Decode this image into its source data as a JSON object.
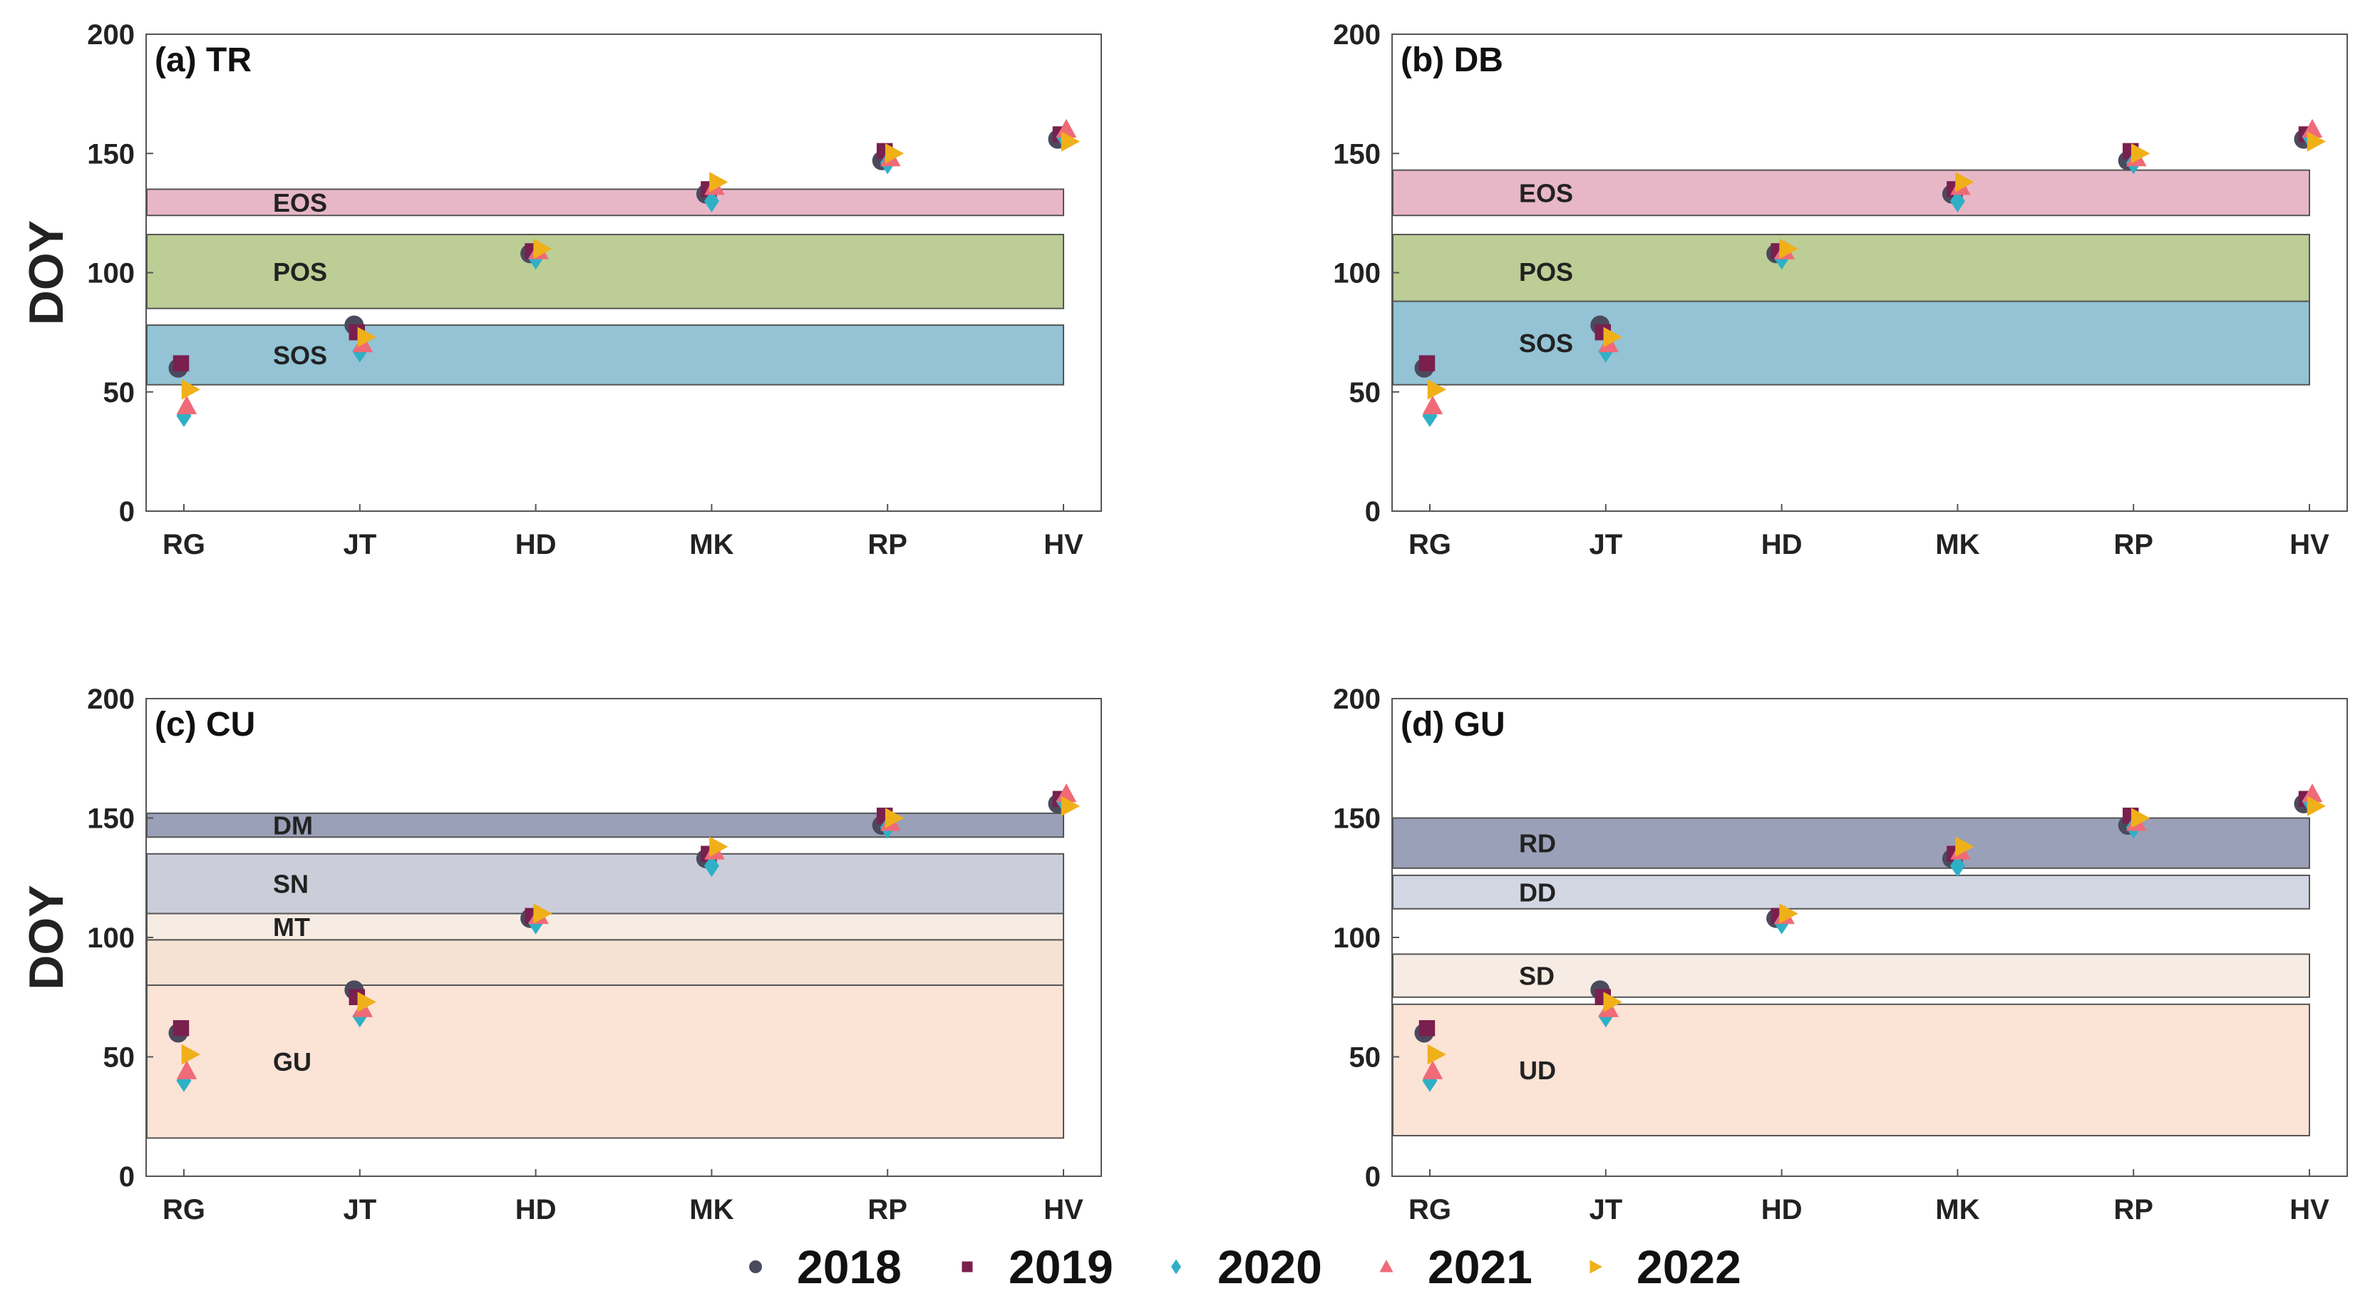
{
  "chart_data": [
    {
      "type": "scatter",
      "title": "(a) TR",
      "ylabel": "DOY",
      "ylim": [
        0,
        200
      ],
      "yticks": [
        "0",
        "50",
        "100",
        "150",
        "200"
      ],
      "categories": [
        "RG",
        "JT",
        "HD",
        "MK",
        "RP",
        "HV"
      ],
      "bands": [
        {
          "label": "EOS",
          "y0": 124,
          "y1": 135,
          "color": "#e8b7c7"
        },
        {
          "label": "POS",
          "y0": 85,
          "y1": 116,
          "color": "#bccd95"
        },
        {
          "label": "SOS",
          "y0": 53,
          "y1": 78,
          "color": "#93c3d4"
        }
      ],
      "series": [
        {
          "name": "2018",
          "values": [
            60,
            78,
            108,
            133,
            147,
            156
          ]
        },
        {
          "name": "2019",
          "values": [
            62,
            75,
            109,
            135,
            151,
            158
          ]
        },
        {
          "name": "2020",
          "values": [
            40,
            67,
            106,
            130,
            146,
            157
          ]
        },
        {
          "name": "2021",
          "values": [
            44,
            70,
            109,
            136,
            148,
            160
          ]
        },
        {
          "name": "2022",
          "values": [
            51,
            73,
            110,
            138,
            150,
            155
          ]
        }
      ]
    },
    {
      "type": "scatter",
      "title": "(b) DB",
      "ylabel": "",
      "ylim": [
        0,
        200
      ],
      "yticks": [
        "0",
        "50",
        "100",
        "150",
        "200"
      ],
      "categories": [
        "RG",
        "JT",
        "HD",
        "MK",
        "RP",
        "HV"
      ],
      "bands": [
        {
          "label": "EOS",
          "y0": 124,
          "y1": 143,
          "color": "#e8b7c7"
        },
        {
          "label": "POS",
          "y0": 85,
          "y1": 116,
          "color": "#bccd95"
        },
        {
          "label": "SOS",
          "y0": 53,
          "y1": 88,
          "color": "#93c3d4"
        }
      ],
      "series": [
        {
          "name": "2018",
          "values": [
            60,
            78,
            108,
            133,
            147,
            156
          ]
        },
        {
          "name": "2019",
          "values": [
            62,
            75,
            109,
            135,
            151,
            158
          ]
        },
        {
          "name": "2020",
          "values": [
            40,
            67,
            106,
            130,
            146,
            157
          ]
        },
        {
          "name": "2021",
          "values": [
            44,
            70,
            109,
            136,
            148,
            160
          ]
        },
        {
          "name": "2022",
          "values": [
            51,
            73,
            110,
            138,
            150,
            155
          ]
        }
      ]
    },
    {
      "type": "scatter",
      "title": "(c) CU",
      "ylabel": "DOY",
      "ylim": [
        0,
        200
      ],
      "yticks": [
        "0",
        "50",
        "100",
        "150",
        "200"
      ],
      "categories": [
        "RG",
        "JT",
        "HD",
        "MK",
        "RP",
        "HV"
      ],
      "bands": [
        {
          "label": "GU",
          "y0": 16,
          "y1": 80,
          "color": "#fbe3d6"
        },
        {
          "label": "",
          "y0": 80,
          "y1": 99,
          "color": "#f6e2d2"
        },
        {
          "label": "MT",
          "y0": 99,
          "y1": 110,
          "color": "#f7ece3"
        },
        {
          "label": "SN",
          "y0": 110,
          "y1": 135,
          "color": "#cbcdd9"
        },
        {
          "label": "DM",
          "y0": 142,
          "y1": 152,
          "color": "#9aa0b7"
        }
      ],
      "series": [
        {
          "name": "2018",
          "values": [
            60,
            78,
            108,
            133,
            147,
            156
          ]
        },
        {
          "name": "2019",
          "values": [
            62,
            75,
            109,
            135,
            151,
            158
          ]
        },
        {
          "name": "2020",
          "values": [
            40,
            67,
            106,
            130,
            146,
            157
          ]
        },
        {
          "name": "2021",
          "values": [
            44,
            70,
            109,
            136,
            148,
            160
          ]
        },
        {
          "name": "2022",
          "values": [
            51,
            73,
            110,
            138,
            150,
            155
          ]
        }
      ]
    },
    {
      "type": "scatter",
      "title": "(d) GU",
      "ylabel": "",
      "ylim": [
        0,
        200
      ],
      "yticks": [
        "0",
        "50",
        "100",
        "150",
        "200"
      ],
      "categories": [
        "RG",
        "JT",
        "HD",
        "MK",
        "RP",
        "HV"
      ],
      "bands": [
        {
          "label": "UD",
          "y0": 17,
          "y1": 72,
          "color": "#fbe3d6"
        },
        {
          "label": "SD",
          "y0": 75,
          "y1": 93,
          "color": "#f7ece3"
        },
        {
          "label": "DD",
          "y0": 112,
          "y1": 126,
          "color": "#d3d6e3"
        },
        {
          "label": "RD",
          "y0": 129,
          "y1": 150,
          "color": "#9aa0b7"
        }
      ],
      "series": [
        {
          "name": "2018",
          "values": [
            60,
            78,
            108,
            133,
            147,
            156
          ]
        },
        {
          "name": "2019",
          "values": [
            62,
            75,
            109,
            135,
            151,
            158
          ]
        },
        {
          "name": "2020",
          "values": [
            40,
            67,
            106,
            130,
            146,
            157
          ]
        },
        {
          "name": "2021",
          "values": [
            44,
            70,
            109,
            136,
            148,
            160
          ]
        },
        {
          "name": "2022",
          "values": [
            51,
            73,
            110,
            138,
            150,
            155
          ]
        }
      ]
    }
  ],
  "legend": {
    "placement": "bottom-center",
    "items": [
      {
        "name": "2018",
        "marker": "circle",
        "color": "#4a4a5e"
      },
      {
        "name": "2019",
        "marker": "square",
        "color": "#7a1f4e"
      },
      {
        "name": "2020",
        "marker": "diamond",
        "color": "#2fb0c6"
      },
      {
        "name": "2021",
        "marker": "triangle",
        "color": "#f06a77"
      },
      {
        "name": "2022",
        "marker": "right-triangle",
        "color": "#f0b019"
      }
    ]
  }
}
